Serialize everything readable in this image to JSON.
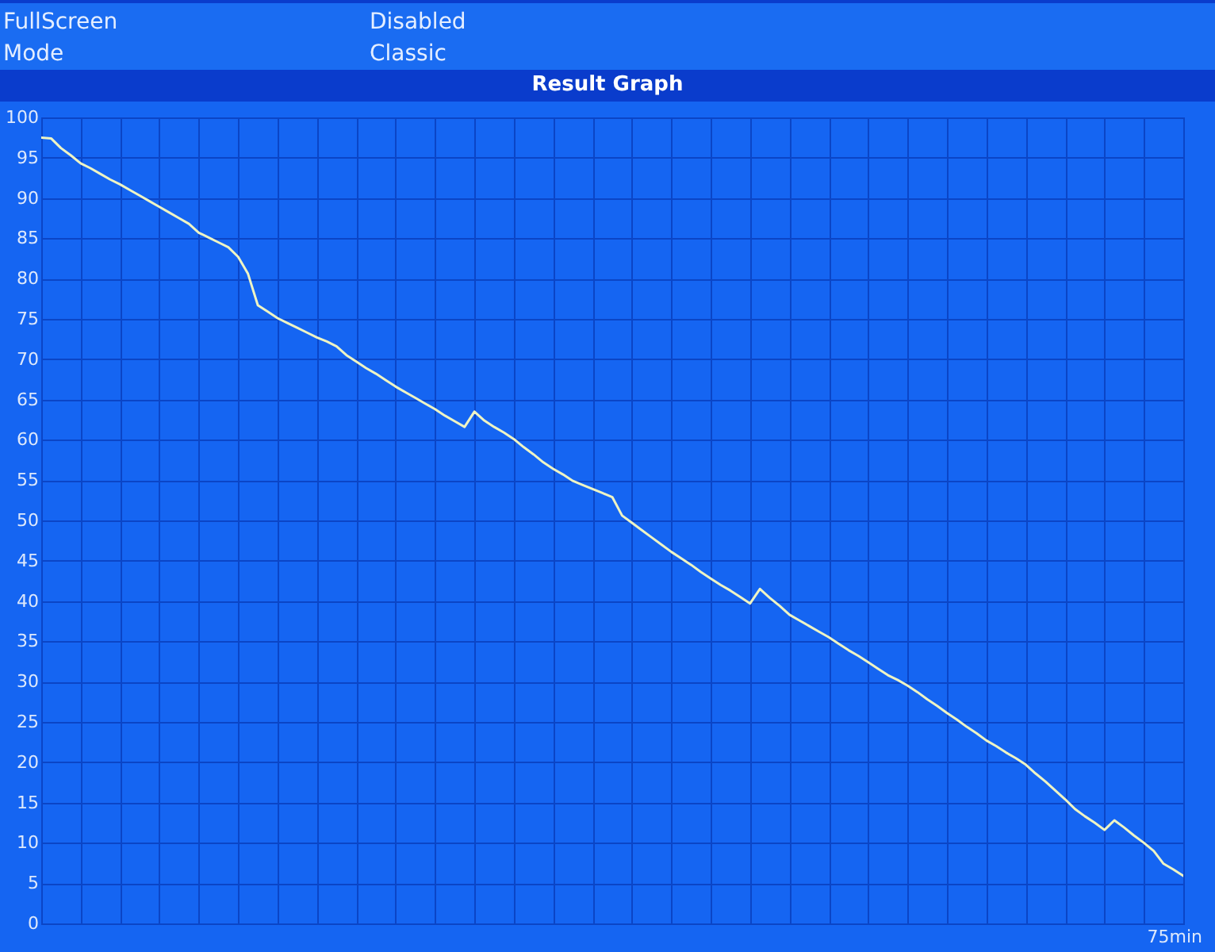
{
  "chart_data": {
    "type": "line",
    "title": "Result Graph",
    "annotations": [
      "FullScreen",
      "Disabled",
      "Mode",
      "Classic",
      "75min"
    ],
    "categories": [
      null,
      null,
      null,
      null,
      null,
      null,
      null,
      null,
      null,
      null,
      null,
      null,
      null,
      null,
      null,
      null,
      null,
      null,
      null,
      null,
      null,
      null,
      null,
      null,
      null,
      null,
      null,
      null,
      null,
      null,
      null,
      null,
      null,
      null,
      null,
      null,
      null,
      null,
      null,
      null,
      null,
      null,
      null,
      null,
      null,
      null,
      null,
      null,
      null,
      null,
      null,
      null,
      null,
      null,
      null,
      null,
      null,
      null,
      null,
      null,
      null,
      null,
      null,
      null,
      null,
      null,
      null,
      null,
      null,
      null,
      null,
      null,
      null,
      null,
      null,
      null,
      null,
      null,
      null,
      null,
      null,
      null,
      null,
      null,
      null,
      null,
      null,
      null,
      null,
      null,
      null,
      null,
      null,
      null,
      null,
      null,
      null,
      null,
      null,
      null,
      null,
      null,
      null,
      null,
      null,
      null,
      null,
      null,
      null,
      null,
      null,
      null,
      null,
      null,
      null,
      null,
      null
    ],
    "series": [
      {
        "color": "#eef4c4",
        "values": [
          97.5,
          97.4,
          96.2,
          95.3,
          94.3,
          93.7,
          93.0,
          92.3,
          91.7,
          91.0,
          90.3,
          89.6,
          88.9,
          88.2,
          87.5,
          86.8,
          85.7,
          85.1,
          84.5,
          83.9,
          82.7,
          80.6,
          76.7,
          75.9,
          75.1,
          74.5,
          73.9,
          73.3,
          72.7,
          72.2,
          71.6,
          70.5,
          69.7,
          68.9,
          68.2,
          67.4,
          66.6,
          65.9,
          65.2,
          64.5,
          63.8,
          63.0,
          62.3,
          61.6,
          63.5,
          62.4,
          61.6,
          60.9,
          60.1,
          59.1,
          58.2,
          57.2,
          56.4,
          55.7,
          54.9,
          54.4,
          53.9,
          53.4,
          52.9,
          50.6,
          49.7,
          48.8,
          47.9,
          47.0,
          46.1,
          45.3,
          44.5,
          43.6,
          42.8,
          42.0,
          41.3,
          40.5,
          39.7,
          41.5,
          40.4,
          39.4,
          38.3,
          37.6,
          36.9,
          36.2,
          35.5,
          34.7,
          33.9,
          33.2,
          32.4,
          31.6,
          30.8,
          30.2,
          29.5,
          28.7,
          27.8,
          27.0,
          26.1,
          25.3,
          24.4,
          23.6,
          22.7,
          22.0,
          21.2,
          20.5,
          19.7,
          18.6,
          17.6,
          16.5,
          15.4,
          14.2,
          13.3,
          12.5,
          11.6,
          12.8,
          11.9,
          10.9,
          10.0,
          9.0,
          7.4,
          6.7,
          5.9
        ]
      }
    ],
    "ylim": [
      0,
      100
    ],
    "yticks": [
      0,
      5,
      10,
      15,
      20,
      25,
      30,
      35,
      40,
      45,
      50,
      55,
      60,
      65,
      70,
      75,
      80,
      85,
      90,
      95,
      100
    ],
    "grid": true
  }
}
